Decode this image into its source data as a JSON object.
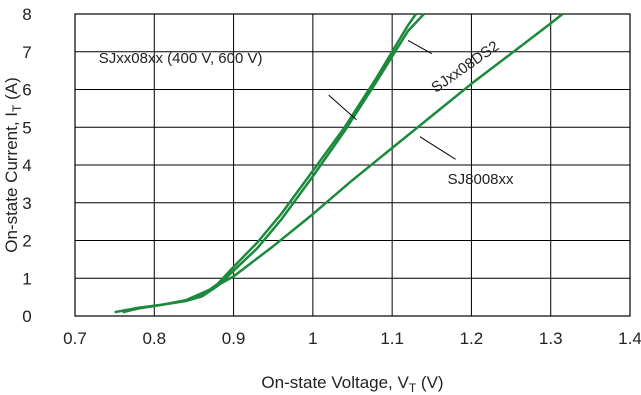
{
  "chart_data": {
    "type": "line",
    "xlabel": "On-state Voltage, V",
    "xlabel_sub": "T",
    "xlabel_unit": " (V)",
    "ylabel": "On-state Current, I",
    "ylabel_sub": "T",
    "ylabel_unit": " (A)",
    "xlim": [
      0.7,
      1.4
    ],
    "ylim": [
      0,
      8
    ],
    "xticks": [
      "0.7",
      "0.8",
      "0.9",
      "1",
      "1.1",
      "1.2",
      "1.3",
      "1.4"
    ],
    "yticks": [
      "0",
      "1",
      "2",
      "3",
      "4",
      "5",
      "6",
      "7",
      "8"
    ],
    "grid": true,
    "line_color": "#1b8a3c",
    "series": [
      {
        "name": "SJxx08xx (400 V, 600 V)",
        "points": [
          [
            0.75,
            0.1
          ],
          [
            0.78,
            0.22
          ],
          [
            0.81,
            0.3
          ],
          [
            0.84,
            0.4
          ],
          [
            0.86,
            0.55
          ],
          [
            0.88,
            0.85
          ],
          [
            0.9,
            1.3
          ],
          [
            0.93,
            1.95
          ],
          [
            0.96,
            2.7
          ],
          [
            1.0,
            3.85
          ],
          [
            1.04,
            5.0
          ],
          [
            1.08,
            6.3
          ],
          [
            1.12,
            7.7
          ],
          [
            1.13,
            8.0
          ]
        ]
      },
      {
        "name": "SJxx08DS2",
        "points": [
          [
            0.76,
            0.1
          ],
          [
            0.78,
            0.2
          ],
          [
            0.81,
            0.3
          ],
          [
            0.84,
            0.4
          ],
          [
            0.86,
            0.52
          ],
          [
            0.88,
            0.8
          ],
          [
            0.9,
            1.2
          ],
          [
            0.93,
            1.8
          ],
          [
            0.96,
            2.55
          ],
          [
            1.0,
            3.7
          ],
          [
            1.04,
            4.9
          ],
          [
            1.08,
            6.2
          ],
          [
            1.12,
            7.55
          ],
          [
            1.14,
            8.0
          ]
        ]
      },
      {
        "name": "SJ8008xx",
        "points": [
          [
            0.76,
            0.1
          ],
          [
            0.78,
            0.2
          ],
          [
            0.81,
            0.3
          ],
          [
            0.84,
            0.42
          ],
          [
            0.87,
            0.7
          ],
          [
            0.9,
            1.05
          ],
          [
            0.95,
            1.85
          ],
          [
            1.0,
            2.7
          ],
          [
            1.05,
            3.6
          ],
          [
            1.1,
            4.45
          ],
          [
            1.15,
            5.3
          ],
          [
            1.2,
            6.15
          ],
          [
            1.25,
            6.95
          ],
          [
            1.3,
            7.75
          ],
          [
            1.315,
            8.0
          ]
        ]
      }
    ],
    "annotations": [
      {
        "text": "SJxx08xx (400 V, 600 V)",
        "series": 0
      },
      {
        "text": "SJxx08DS2",
        "series": 1
      },
      {
        "text": "SJ8008xx",
        "series": 2
      }
    ]
  }
}
